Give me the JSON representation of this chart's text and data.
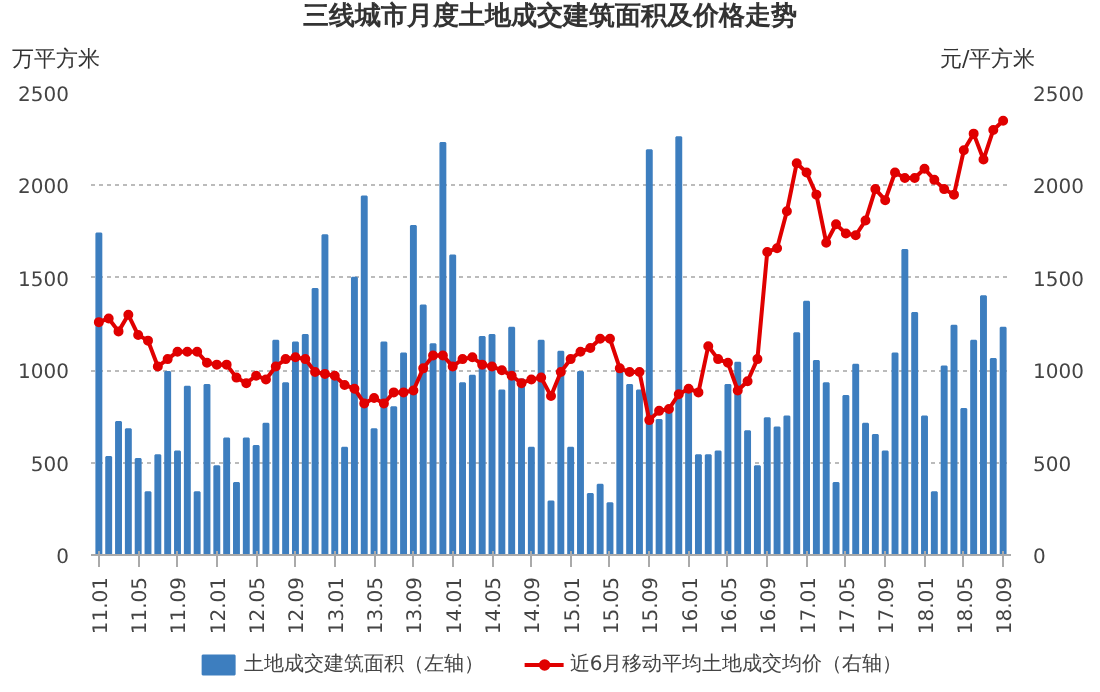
{
  "chart_data": {
    "type": "bar",
    "title": "三线城市月度土地成交建筑面积及价格走势",
    "ylabel": "万平方米",
    "y2label": "元/平方米",
    "categories": [
      "11.01",
      null,
      null,
      null,
      "11.05",
      null,
      null,
      null,
      "11.09",
      null,
      null,
      null,
      "12.01",
      null,
      null,
      null,
      "12.05",
      null,
      null,
      null,
      "12.09",
      null,
      null,
      null,
      "13.01",
      null,
      null,
      null,
      "13.05",
      null,
      null,
      null,
      "13.09",
      null,
      null,
      null,
      "14.01",
      null,
      null,
      null,
      "14.05",
      null,
      null,
      null,
      "14.09",
      null,
      null,
      null,
      "15.01",
      null,
      null,
      null,
      "15.05",
      null,
      null,
      null,
      "15.09",
      null,
      null,
      null,
      "16.01",
      null,
      null,
      null,
      "16.05",
      null,
      null,
      null,
      "16.09",
      null,
      null,
      null,
      "17.01",
      null,
      null,
      null,
      "17.05",
      null,
      null,
      null,
      "17.09",
      null,
      null,
      null,
      "18.01",
      null,
      null,
      null,
      "18.05",
      null,
      null,
      null,
      "18.09"
    ],
    "series": [
      {
        "name": "土地成交建筑面积（左轴）",
        "color": "#3d7ebf",
        "values": [
          1740,
          530,
          720,
          680,
          520,
          340,
          540,
          990,
          560,
          910,
          340,
          920,
          480,
          630,
          390,
          630,
          590,
          710,
          1160,
          930,
          1150,
          1190,
          1440,
          1730,
          950,
          580,
          1500,
          1940,
          680,
          1150,
          800,
          1090,
          1780,
          1350,
          1140,
          2230,
          1620,
          930,
          970,
          1180,
          1190,
          890,
          1230,
          950,
          580,
          1160,
          290,
          1100,
          580,
          990,
          330,
          380,
          280,
          990,
          920,
          890,
          2190,
          730,
          800,
          2260,
          890,
          540,
          540,
          560,
          920,
          1040,
          670,
          480,
          740,
          690,
          750,
          1200,
          1370,
          1050,
          930,
          390,
          860,
          1030,
          710,
          650,
          560,
          1090,
          1650,
          1310,
          750,
          340,
          1020,
          1240,
          790,
          1160,
          1400,
          1060,
          1230
        ]
      },
      {
        "name": "近6月移动平均土地成交均价（右轴）",
        "type": "line",
        "axis": "y2",
        "color": "#e00000",
        "marker": "circle",
        "values": [
          1260,
          1280,
          1210,
          1300,
          1190,
          1160,
          1020,
          1060,
          1100,
          1100,
          1100,
          1040,
          1030,
          1030,
          960,
          930,
          970,
          950,
          1020,
          1060,
          1070,
          1060,
          990,
          980,
          970,
          920,
          900,
          820,
          850,
          820,
          880,
          880,
          890,
          1010,
          1080,
          1080,
          1020,
          1060,
          1070,
          1030,
          1020,
          1000,
          970,
          930,
          950,
          960,
          860,
          990,
          1060,
          1100,
          1120,
          1170,
          1170,
          1010,
          990,
          990,
          730,
          780,
          790,
          870,
          900,
          880,
          1130,
          1060,
          1040,
          890,
          940,
          1060,
          1640,
          1660,
          1860,
          2120,
          2070,
          1950,
          1690,
          1790,
          1740,
          1730,
          1810,
          1980,
          1920,
          2070,
          2040,
          2040,
          2090,
          2030,
          1980,
          1950,
          2190,
          2280,
          2140,
          2300,
          2350
        ]
      }
    ],
    "ylim": [
      0,
      2500
    ],
    "yticks": [
      0,
      500,
      1000,
      1500,
      2000,
      2500
    ],
    "y2lim": [
      0,
      2500
    ],
    "y2ticks": [
      0,
      500,
      1000,
      1500,
      2000,
      2500
    ],
    "grid": "y",
    "legend": "bottom"
  }
}
